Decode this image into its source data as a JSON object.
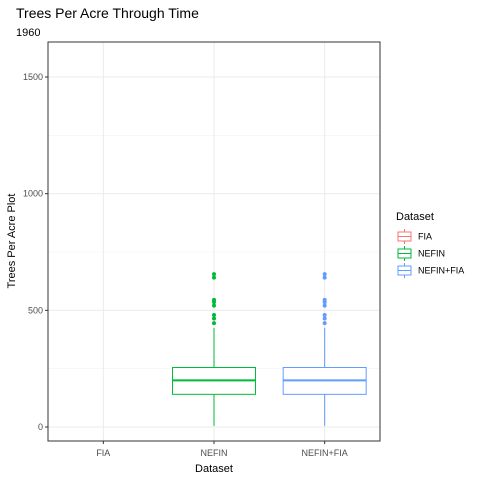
{
  "chart_data": {
    "type": "boxplot",
    "title": "Trees Per Acre Through Time",
    "subtitle": "1960",
    "xlabel": "Dataset",
    "ylabel": "Trees Per Acre Plot",
    "ylim": [
      -60,
      1650
    ],
    "yticks": [
      0,
      500,
      1000,
      1500
    ],
    "grid": true,
    "legend_position": "right",
    "legend_title": "Dataset",
    "categories": [
      "FIA",
      "NEFIN",
      "NEFIN+FIA"
    ],
    "series": [
      {
        "name": "FIA",
        "color": "#F8766D",
        "box": null
      },
      {
        "name": "NEFIN",
        "color": "#00BA38",
        "box": {
          "whisker_low": 5,
          "q1": 140,
          "median": 200,
          "q3": 255,
          "whisker_high": 425
        },
        "outliers": [
          445,
          465,
          480,
          520,
          535,
          545,
          640,
          655
        ]
      },
      {
        "name": "NEFIN+FIA",
        "color": "#619CFF",
        "box": {
          "whisker_low": 5,
          "q1": 140,
          "median": 200,
          "q3": 255,
          "whisker_high": 425
        },
        "outliers": [
          445,
          465,
          480,
          520,
          535,
          545,
          640,
          655
        ]
      }
    ]
  }
}
